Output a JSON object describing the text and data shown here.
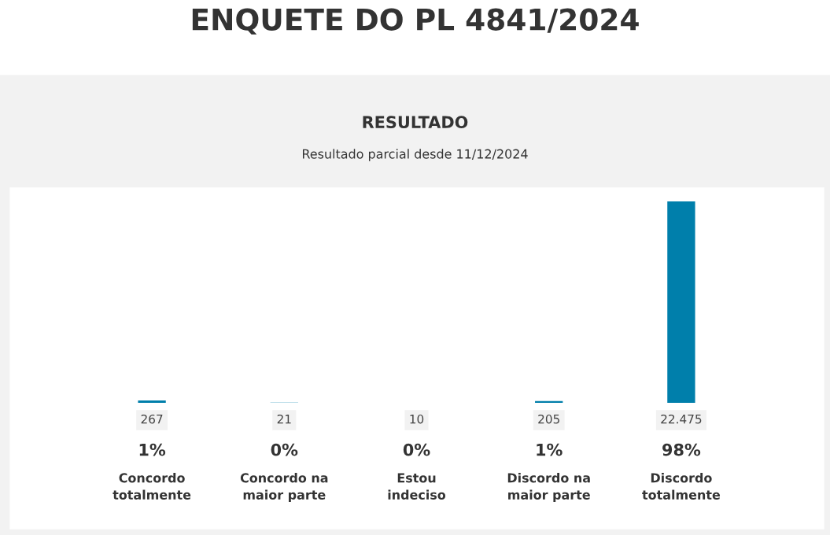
{
  "chart_data": {
    "type": "bar",
    "title": "ENQUETE DO PL 4841/2024",
    "subtitle": "RESULTADO",
    "categories": [
      "Concordo\ntotalmente",
      "Concordo na\nmaior parte",
      "Estou\nindeciso",
      "Discordo na\nmaior parte",
      "Discordo\ntotalmente"
    ],
    "values": [
      267,
      21,
      10,
      205,
      22475
    ],
    "value_labels": [
      "267",
      "21",
      "10",
      "205",
      "22.475"
    ],
    "color": "#007fab",
    "annotations": [
      "Resultado parcial desde 11/12/2024",
      "1%",
      "0%",
      "0%",
      "1%",
      "98%"
    ]
  }
}
